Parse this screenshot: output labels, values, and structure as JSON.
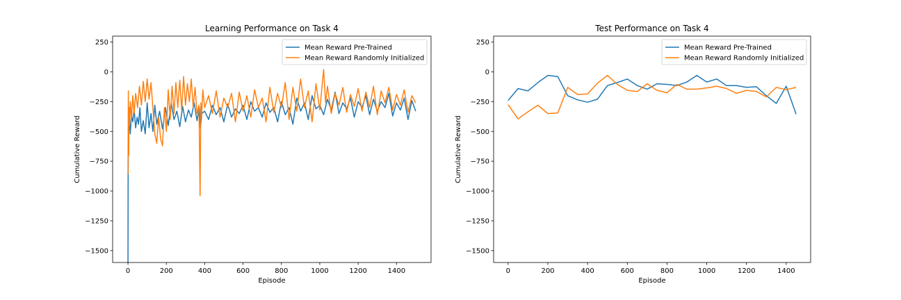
{
  "chart_data": [
    {
      "type": "line",
      "title": "Learning Performance on Task 4",
      "xlabel": "Episode",
      "ylabel": "Cumulative Reward",
      "xlim": [
        -80,
        1580
      ],
      "ylim": [
        -1600,
        300
      ],
      "xticks": [
        "0",
        "200",
        "400",
        "600",
        "800",
        "1000",
        "1200",
        "1400"
      ],
      "yticks": [
        "250",
        "0",
        "−250",
        "−500",
        "−750",
        "−1000",
        "−1250",
        "−1500"
      ],
      "legend": "upper right",
      "series": [
        {
          "name": "Mean Reward Pre-Trained",
          "color": "#1f77b4",
          "x": [
            0,
            1,
            2,
            3,
            5,
            8,
            12,
            18,
            25,
            32,
            40,
            48,
            55,
            62,
            70,
            80,
            90,
            100,
            110,
            120,
            130,
            140,
            150,
            165,
            180,
            195,
            210,
            225,
            240,
            255,
            270,
            285,
            300,
            315,
            330,
            345,
            360,
            372,
            378,
            385,
            400,
            420,
            440,
            460,
            480,
            500,
            520,
            540,
            560,
            580,
            600,
            620,
            640,
            660,
            680,
            700,
            720,
            740,
            760,
            780,
            800,
            820,
            840,
            860,
            880,
            900,
            920,
            940,
            960,
            980,
            1000,
            1020,
            1040,
            1060,
            1080,
            1100,
            1120,
            1140,
            1160,
            1180,
            1200,
            1220,
            1240,
            1260,
            1280,
            1300,
            1320,
            1340,
            1360,
            1380,
            1400,
            1420,
            1440,
            1460,
            1480,
            1500
          ],
          "y": [
            -1600,
            -900,
            -620,
            -300,
            -480,
            -420,
            -520,
            -360,
            -420,
            -310,
            -470,
            -380,
            -440,
            -300,
            -500,
            -410,
            -520,
            -260,
            -470,
            -350,
            -500,
            -280,
            -440,
            -330,
            -480,
            -300,
            -450,
            -260,
            -400,
            -330,
            -460,
            -290,
            -420,
            -320,
            -380,
            -260,
            -410,
            -300,
            -470,
            -350,
            -330,
            -400,
            -280,
            -360,
            -300,
            -420,
            -270,
            -380,
            -310,
            -350,
            -280,
            -400,
            -250,
            -330,
            -300,
            -380,
            -260,
            -340,
            -300,
            -420,
            -250,
            -360,
            -300,
            -440,
            -220,
            -330,
            -260,
            -400,
            -200,
            -310,
            -280,
            -360,
            -230,
            -320,
            -170,
            -350,
            -260,
            -310,
            -220,
            -380,
            -250,
            -300,
            -200,
            -360,
            -230,
            -330,
            -250,
            -300,
            -180,
            -370,
            -260,
            -320,
            -220,
            -400,
            -240,
            -330
          ]
        },
        {
          "name": "Mean Reward Randomly Initialized",
          "color": "#ff7f0e",
          "x": [
            0,
            2,
            4,
            6,
            8,
            12,
            18,
            25,
            32,
            40,
            50,
            60,
            70,
            80,
            90,
            100,
            110,
            120,
            130,
            140,
            150,
            160,
            170,
            180,
            190,
            200,
            210,
            220,
            230,
            240,
            250,
            260,
            270,
            280,
            290,
            300,
            310,
            320,
            330,
            340,
            350,
            360,
            370,
            376,
            380,
            384,
            390,
            400,
            420,
            440,
            460,
            480,
            500,
            520,
            540,
            560,
            580,
            600,
            620,
            640,
            660,
            680,
            700,
            720,
            740,
            760,
            780,
            800,
            820,
            840,
            860,
            880,
            900,
            920,
            940,
            960,
            980,
            1000,
            1020,
            1030,
            1040,
            1060,
            1080,
            1100,
            1120,
            1140,
            1160,
            1180,
            1200,
            1220,
            1240,
            1260,
            1280,
            1300,
            1320,
            1340,
            1360,
            1380,
            1400,
            1420,
            1440,
            1460,
            1480,
            1500
          ],
          "y": [
            -860,
            -160,
            -700,
            -300,
            -450,
            -250,
            -400,
            -200,
            -350,
            -180,
            -300,
            -120,
            -280,
            -80,
            -250,
            -60,
            -230,
            -90,
            -300,
            -520,
            -600,
            -380,
            -560,
            -620,
            -300,
            -500,
            -150,
            -400,
            -120,
            -350,
            -90,
            -300,
            -70,
            -320,
            -40,
            -280,
            -100,
            -250,
            -60,
            -300,
            -130,
            -350,
            -280,
            -1040,
            -260,
            -380,
            -150,
            -300,
            -200,
            -350,
            -160,
            -380,
            -220,
            -300,
            -180,
            -420,
            -170,
            -330,
            -200,
            -380,
            -150,
            -300,
            -220,
            -420,
            -130,
            -340,
            -180,
            -300,
            -90,
            -400,
            -130,
            -330,
            -60,
            -300,
            -160,
            -420,
            -100,
            -320,
            20,
            -260,
            -120,
            -350,
            -180,
            -280,
            -130,
            -340,
            -190,
            -290,
            -140,
            -330,
            -170,
            -300,
            -120,
            -360,
            -160,
            -260,
            -130,
            -320,
            -190,
            -280,
            -150,
            -340,
            -200,
            -260
          ]
        }
      ]
    },
    {
      "type": "line",
      "title": "Test Performance on Task 4",
      "xlabel": "Episode",
      "ylabel": "Cumulative Reward",
      "xlim": [
        -73,
        1523
      ],
      "ylim": [
        -1600,
        300
      ],
      "xticks": [
        "0",
        "200",
        "400",
        "600",
        "800",
        "1000",
        "1200",
        "1400"
      ],
      "yticks": [
        "250",
        "0",
        "−250",
        "−500",
        "−750",
        "−1000",
        "−1250",
        "−1500"
      ],
      "legend": "upper right",
      "series": [
        {
          "name": "Mean Reward Pre-Trained",
          "color": "#1f77b4",
          "x": [
            0,
            50,
            100,
            150,
            200,
            250,
            300,
            350,
            400,
            450,
            500,
            550,
            600,
            650,
            700,
            750,
            800,
            850,
            900,
            950,
            1000,
            1050,
            1100,
            1150,
            1200,
            1250,
            1300,
            1350,
            1400,
            1450
          ],
          "y": [
            -240,
            -140,
            -160,
            -90,
            -30,
            -40,
            -200,
            -235,
            -255,
            -230,
            -115,
            -90,
            -60,
            -115,
            -145,
            -100,
            -105,
            -115,
            -85,
            -30,
            -85,
            -60,
            -115,
            -115,
            -130,
            -125,
            -200,
            -265,
            -120,
            -355
          ]
        },
        {
          "name": "Mean Reward Randomly Initialized",
          "color": "#ff7f0e",
          "x": [
            0,
            50,
            100,
            150,
            200,
            250,
            300,
            350,
            400,
            450,
            500,
            550,
            600,
            650,
            700,
            750,
            800,
            850,
            900,
            950,
            1000,
            1050,
            1100,
            1150,
            1200,
            1250,
            1300,
            1350,
            1400,
            1450
          ],
          "y": [
            -275,
            -395,
            -335,
            -280,
            -350,
            -345,
            -130,
            -190,
            -185,
            -95,
            -30,
            -105,
            -155,
            -165,
            -100,
            -155,
            -175,
            -105,
            -145,
            -145,
            -135,
            -120,
            -140,
            -180,
            -155,
            -165,
            -210,
            -130,
            -150,
            -130
          ]
        }
      ]
    }
  ]
}
